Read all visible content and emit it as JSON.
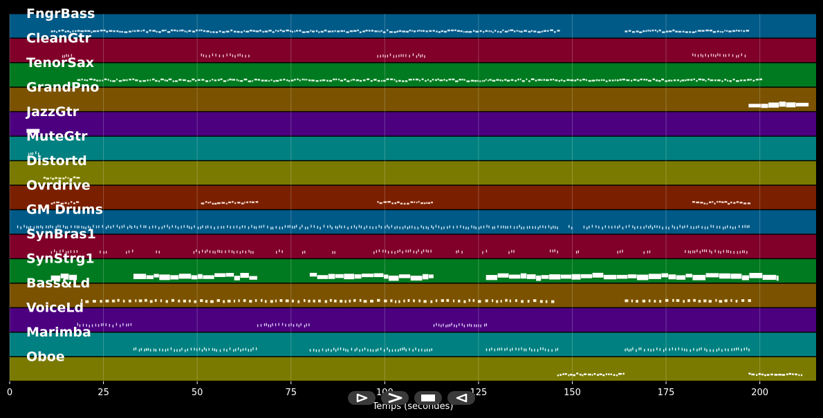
{
  "chart_data": {
    "type": "piano-roll",
    "xlabel": "Temps (secondes)",
    "ylabel": "",
    "xlim": [
      0,
      215
    ],
    "xticks": [
      0,
      25,
      50,
      75,
      100,
      125,
      150,
      175,
      200
    ],
    "grid": true,
    "lanes": [
      {
        "name": "FngrBass",
        "color": "#005a87",
        "segments": [
          [
            11,
            146
          ],
          [
            164,
            197
          ]
        ],
        "style": "dense",
        "note": "#cfe6f5"
      },
      {
        "name": "CleanGtr",
        "color": "#80002a",
        "segments": [
          [
            14,
            17
          ],
          [
            51,
            64
          ],
          [
            98,
            111
          ],
          [
            182,
            196
          ]
        ],
        "style": "ticks",
        "note": "#f0c8d4"
      },
      {
        "name": "TenorSax",
        "color": "#007a20",
        "segments": [
          [
            18,
            200
          ]
        ],
        "style": "dense",
        "note": "#d9f5de"
      },
      {
        "name": "GrandPno",
        "color": "#7a5200",
        "segments": [
          [
            197,
            213
          ]
        ],
        "style": "blocks",
        "note": "#ffffff"
      },
      {
        "name": "JazzGtr",
        "color": "#4c0080",
        "segments": [
          [
            4.5,
            8
          ]
        ],
        "style": "blocks",
        "note": "#ffffff"
      },
      {
        "name": "MuteGtr",
        "color": "#008080",
        "segments": [
          [
            5,
            8
          ]
        ],
        "style": "ticks",
        "note": "#e0f5f5"
      },
      {
        "name": "Distortd",
        "color": "#7a7a00",
        "segments": [
          [
            9,
            18
          ]
        ],
        "style": "dense",
        "note": "#f5f5cc"
      },
      {
        "name": "Ovrdrive",
        "color": "#7a2000",
        "segments": [
          [
            11,
            18
          ],
          [
            51,
            66
          ],
          [
            98,
            113
          ],
          [
            182,
            197
          ]
        ],
        "style": "dense",
        "note": "#f5d6cc"
      },
      {
        "name": "GM Drums",
        "color": "#005a87",
        "segments": [
          [
            2,
            146
          ],
          [
            149,
            150
          ],
          [
            153,
            197
          ]
        ],
        "style": "ticks",
        "note": "#cfe6f5"
      },
      {
        "name": "SynBras1",
        "color": "#80002a",
        "segments": [
          [
            11,
            18
          ],
          [
            24,
            26
          ],
          [
            31,
            33
          ],
          [
            39,
            40
          ],
          [
            49,
            65
          ],
          [
            71,
            73
          ],
          [
            78,
            79
          ],
          [
            86,
            87
          ],
          [
            97,
            113
          ],
          [
            119,
            121
          ],
          [
            126,
            127
          ],
          [
            133,
            135
          ],
          [
            144,
            146
          ],
          [
            151,
            152
          ],
          [
            162,
            164
          ],
          [
            169,
            171
          ],
          [
            180,
            197
          ]
        ],
        "style": "ticks",
        "note": "#f0c8d4"
      },
      {
        "name": "SynStrg1",
        "color": "#007a20",
        "segments": [
          [
            11,
            18
          ],
          [
            33,
            66
          ],
          [
            80,
            113
          ],
          [
            127,
            205
          ]
        ],
        "style": "blocks",
        "note": "#ffffff"
      },
      {
        "name": "Bass&Ld",
        "color": "#7a5200",
        "segments": [
          [
            19,
            146
          ],
          [
            164,
            197
          ]
        ],
        "style": "dots",
        "note": "#fff0cc"
      },
      {
        "name": "VoiceLd",
        "color": "#4c0080",
        "segments": [
          [
            18,
            33
          ],
          [
            66,
            80
          ],
          [
            113,
            127
          ]
        ],
        "style": "ticks",
        "note": "#e0ccf5"
      },
      {
        "name": "Marimba",
        "color": "#008080",
        "segments": [
          [
            33,
            66
          ],
          [
            80,
            113
          ],
          [
            127,
            146
          ],
          [
            164,
            197
          ]
        ],
        "style": "ticks",
        "note": "#e0f5f5"
      },
      {
        "name": "Oboe",
        "color": "#7a7a00",
        "segments": [
          [
            146,
            164
          ],
          [
            197,
            211
          ]
        ],
        "style": "dense",
        "note": "#ffffff"
      }
    ]
  },
  "controls": {
    "play": "play-icon",
    "forward": "fast-forward-icon",
    "stop": "stop-icon",
    "rewind": "rewind-icon"
  }
}
